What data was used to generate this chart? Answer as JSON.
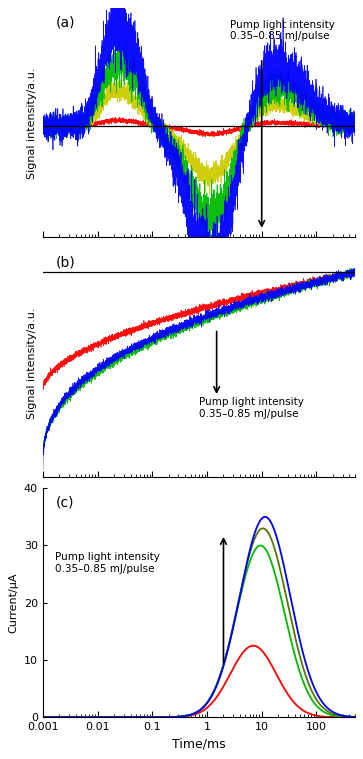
{
  "xlim": [
    0.001,
    500
  ],
  "xlabel": "Time/ms",
  "colors_a": [
    "#ff0000",
    "#cccc00",
    "#00bb00",
    "#0000ff"
  ],
  "colors_b": [
    "#ff0000",
    "#00bb00",
    "#0000ff"
  ],
  "colors_c": [
    "#ff0000",
    "#00bb00",
    "#557700",
    "#0000ff"
  ],
  "panel_labels": [
    "(a)",
    "(b)",
    "(c)"
  ],
  "ylabel_ab": "Signal intensity/a.u.",
  "ylabel_c": "Current/μA",
  "annotation_text": "Pump light intensity\n0.35–0.85 mJ/pulse",
  "ylim_c": [
    0,
    40
  ],
  "yticks_c": [
    0,
    10,
    20,
    30,
    40
  ],
  "background_color": "#ffffff",
  "xtick_vals": [
    0.001,
    0.01,
    0.1,
    1,
    10,
    100
  ],
  "xtick_labels": [
    "0.001",
    "0.01",
    "0.1",
    "1",
    "10",
    "100"
  ]
}
